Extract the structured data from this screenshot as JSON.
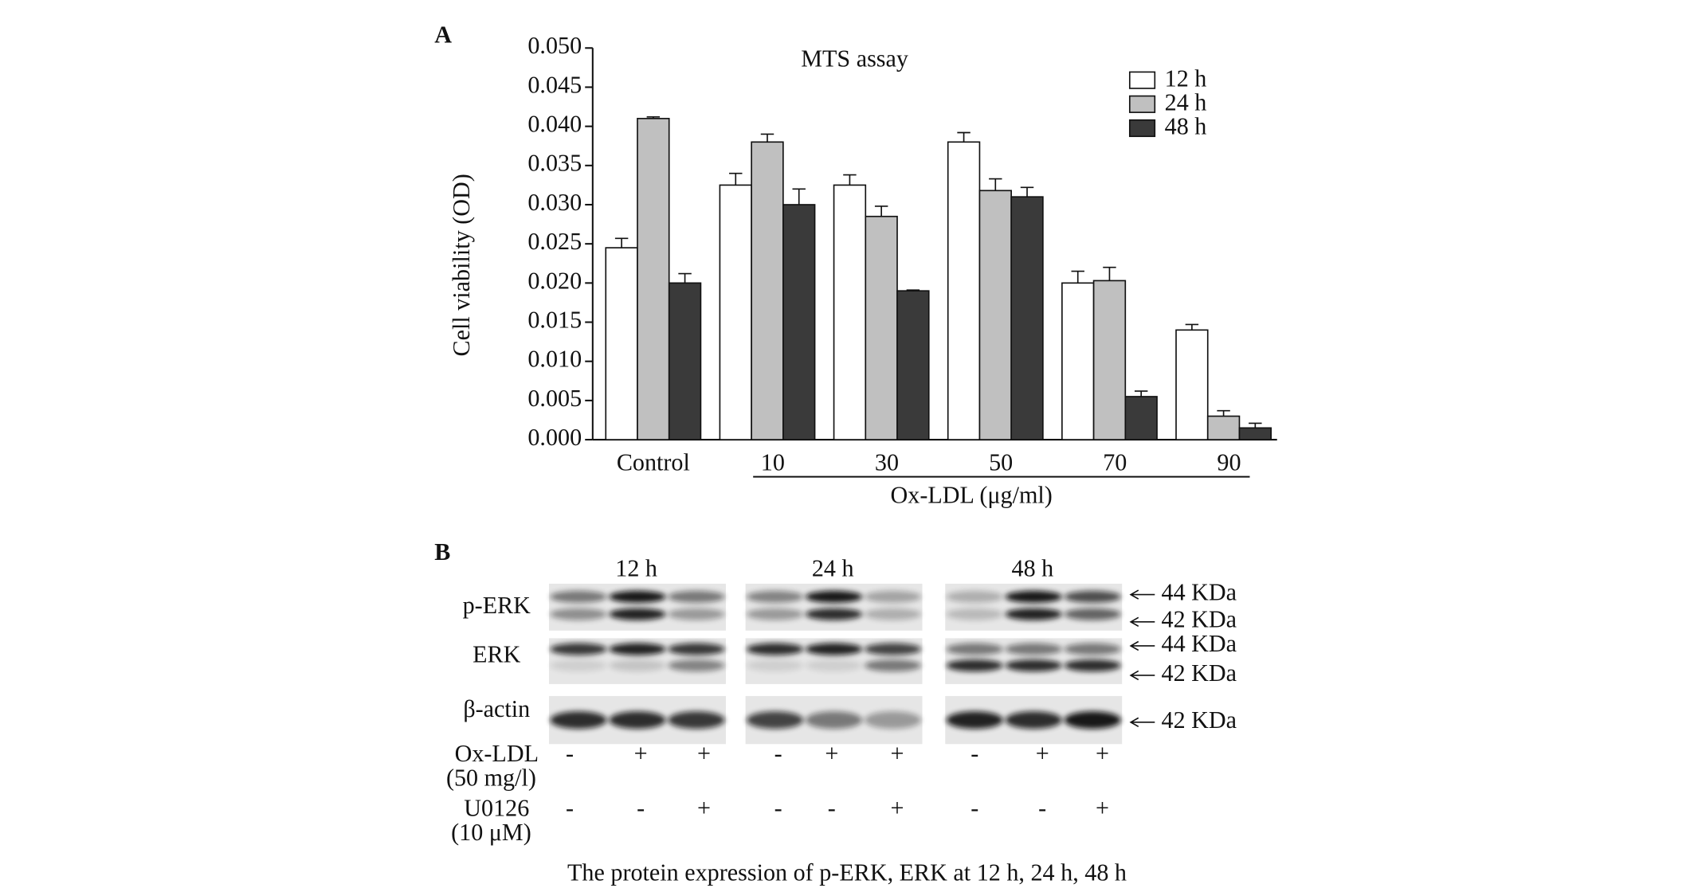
{
  "panel_a_label": "A",
  "chart_data": {
    "type": "bar",
    "title": "MTS  assay",
    "y_label": "Cell viability (OD)",
    "x_label": "Ox-LDL (μg/ml)",
    "categories": [
      "Control",
      "10",
      "30",
      "50",
      "70",
      "90"
    ],
    "series": [
      {
        "name": "12 h",
        "color": "#ffffff",
        "values": [
          0.0245,
          0.0325,
          0.0325,
          0.038,
          0.02,
          0.014
        ],
        "errors": [
          0.0012,
          0.0015,
          0.0013,
          0.0012,
          0.0015,
          0.0007
        ]
      },
      {
        "name": "24 h",
        "color": "#c0c0c0",
        "values": [
          0.041,
          0.038,
          0.0285,
          0.0318,
          0.0203,
          0.003
        ],
        "errors": [
          0.0002,
          0.001,
          0.0013,
          0.0015,
          0.0017,
          0.0007
        ]
      },
      {
        "name": "48 h",
        "color": "#3a3a3a",
        "values": [
          0.02,
          0.03,
          0.019,
          0.031,
          0.0055,
          0.0015
        ],
        "errors": [
          0.0012,
          0.002,
          0.0001,
          0.0012,
          0.0007,
          0.0006
        ]
      }
    ],
    "ylim": [
      0,
      0.05
    ],
    "yticks": [
      {
        "value": 0,
        "label": "0.000"
      },
      {
        "value": 0.005,
        "label": "0.005"
      },
      {
        "value": 0.01,
        "label": "0.010"
      },
      {
        "value": 0.015,
        "label": "0.015"
      },
      {
        "value": 0.02,
        "label": "0.020"
      },
      {
        "value": 0.025,
        "label": "0.025"
      },
      {
        "value": 0.03,
        "label": "0.030"
      },
      {
        "value": 0.035,
        "label": "0.035"
      },
      {
        "value": 0.04,
        "label": "0.040"
      },
      {
        "value": 0.045,
        "label": "0.045"
      },
      {
        "value": 0.05,
        "label": "0.050"
      }
    ],
    "legend": "upper right"
  },
  "panel_b": {
    "label": "B",
    "times": [
      "12 h",
      "24 h",
      "48 h"
    ],
    "rows": [
      {
        "name": "p-ERK",
        "markers": [
          "44 KDa",
          "42 KDa"
        ]
      },
      {
        "name": "ERK",
        "markers": [
          "44 KDa",
          "42 KDa"
        ]
      },
      {
        "name": "β-actin",
        "markers": [
          "42 KDa"
        ]
      }
    ],
    "treatments": [
      {
        "name": "Ox-LDL",
        "dose": "(50 mg/l)",
        "signs": [
          "-",
          "+",
          "+",
          "-",
          "+",
          "+",
          "-",
          "+",
          "+"
        ]
      },
      {
        "name": "U0126",
        "dose": "(10 μM)",
        "signs": [
          "-",
          "-",
          "+",
          "-",
          "-",
          "+",
          "-",
          "-",
          "+"
        ]
      }
    ],
    "caption": "The protein expression of p-ERK, ERK at 12 h, 24 h, 48 h"
  }
}
